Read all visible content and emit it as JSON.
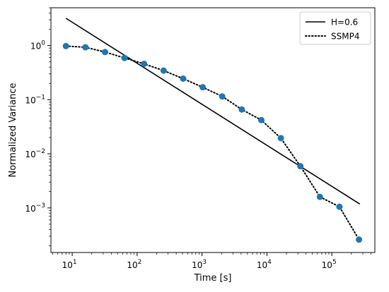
{
  "chart_data": {
    "type": "scatter",
    "title": "",
    "xlabel": "Time [s]",
    "ylabel": "Normalized Variance",
    "xscale": "log",
    "yscale": "log",
    "xlim": [
      4.7,
      460000
    ],
    "ylim": [
      0.00015,
      5
    ],
    "grid": false,
    "legend_position": "top-right",
    "x_ticks": [
      {
        "value": 10,
        "base": "10",
        "exp": "1"
      },
      {
        "value": 100,
        "base": "10",
        "exp": "2"
      },
      {
        "value": 1000,
        "base": "10",
        "exp": "3"
      },
      {
        "value": 10000,
        "base": "10",
        "exp": "4"
      },
      {
        "value": 100000,
        "base": "10",
        "exp": "5"
      }
    ],
    "y_ticks": [
      {
        "value": 0.001,
        "base": "10",
        "exp": "−3"
      },
      {
        "value": 0.01,
        "base": "10",
        "exp": "−2"
      },
      {
        "value": 0.1,
        "base": "10",
        "exp": "−1"
      },
      {
        "value": 1,
        "base": "10",
        "exp": "0"
      }
    ],
    "series": [
      {
        "name": "H=0.6",
        "style": "solid",
        "color": "#000000",
        "x": [
          8,
          270000
        ],
        "y": [
          3.2,
          0.00118
        ]
      },
      {
        "name": "SSMP4",
        "style": "dotted",
        "color": "#000000",
        "marker_color": "#1f77b4",
        "x": [
          8,
          16,
          32,
          64,
          128,
          256,
          512,
          1024,
          2048,
          4096,
          8192,
          16384,
          32768,
          65536,
          131072,
          262144
        ],
        "y": [
          0.98,
          0.93,
          0.76,
          0.59,
          0.46,
          0.345,
          0.245,
          0.17,
          0.115,
          0.066,
          0.042,
          0.0195,
          0.0059,
          0.0016,
          0.00105,
          0.00026
        ]
      }
    ]
  }
}
